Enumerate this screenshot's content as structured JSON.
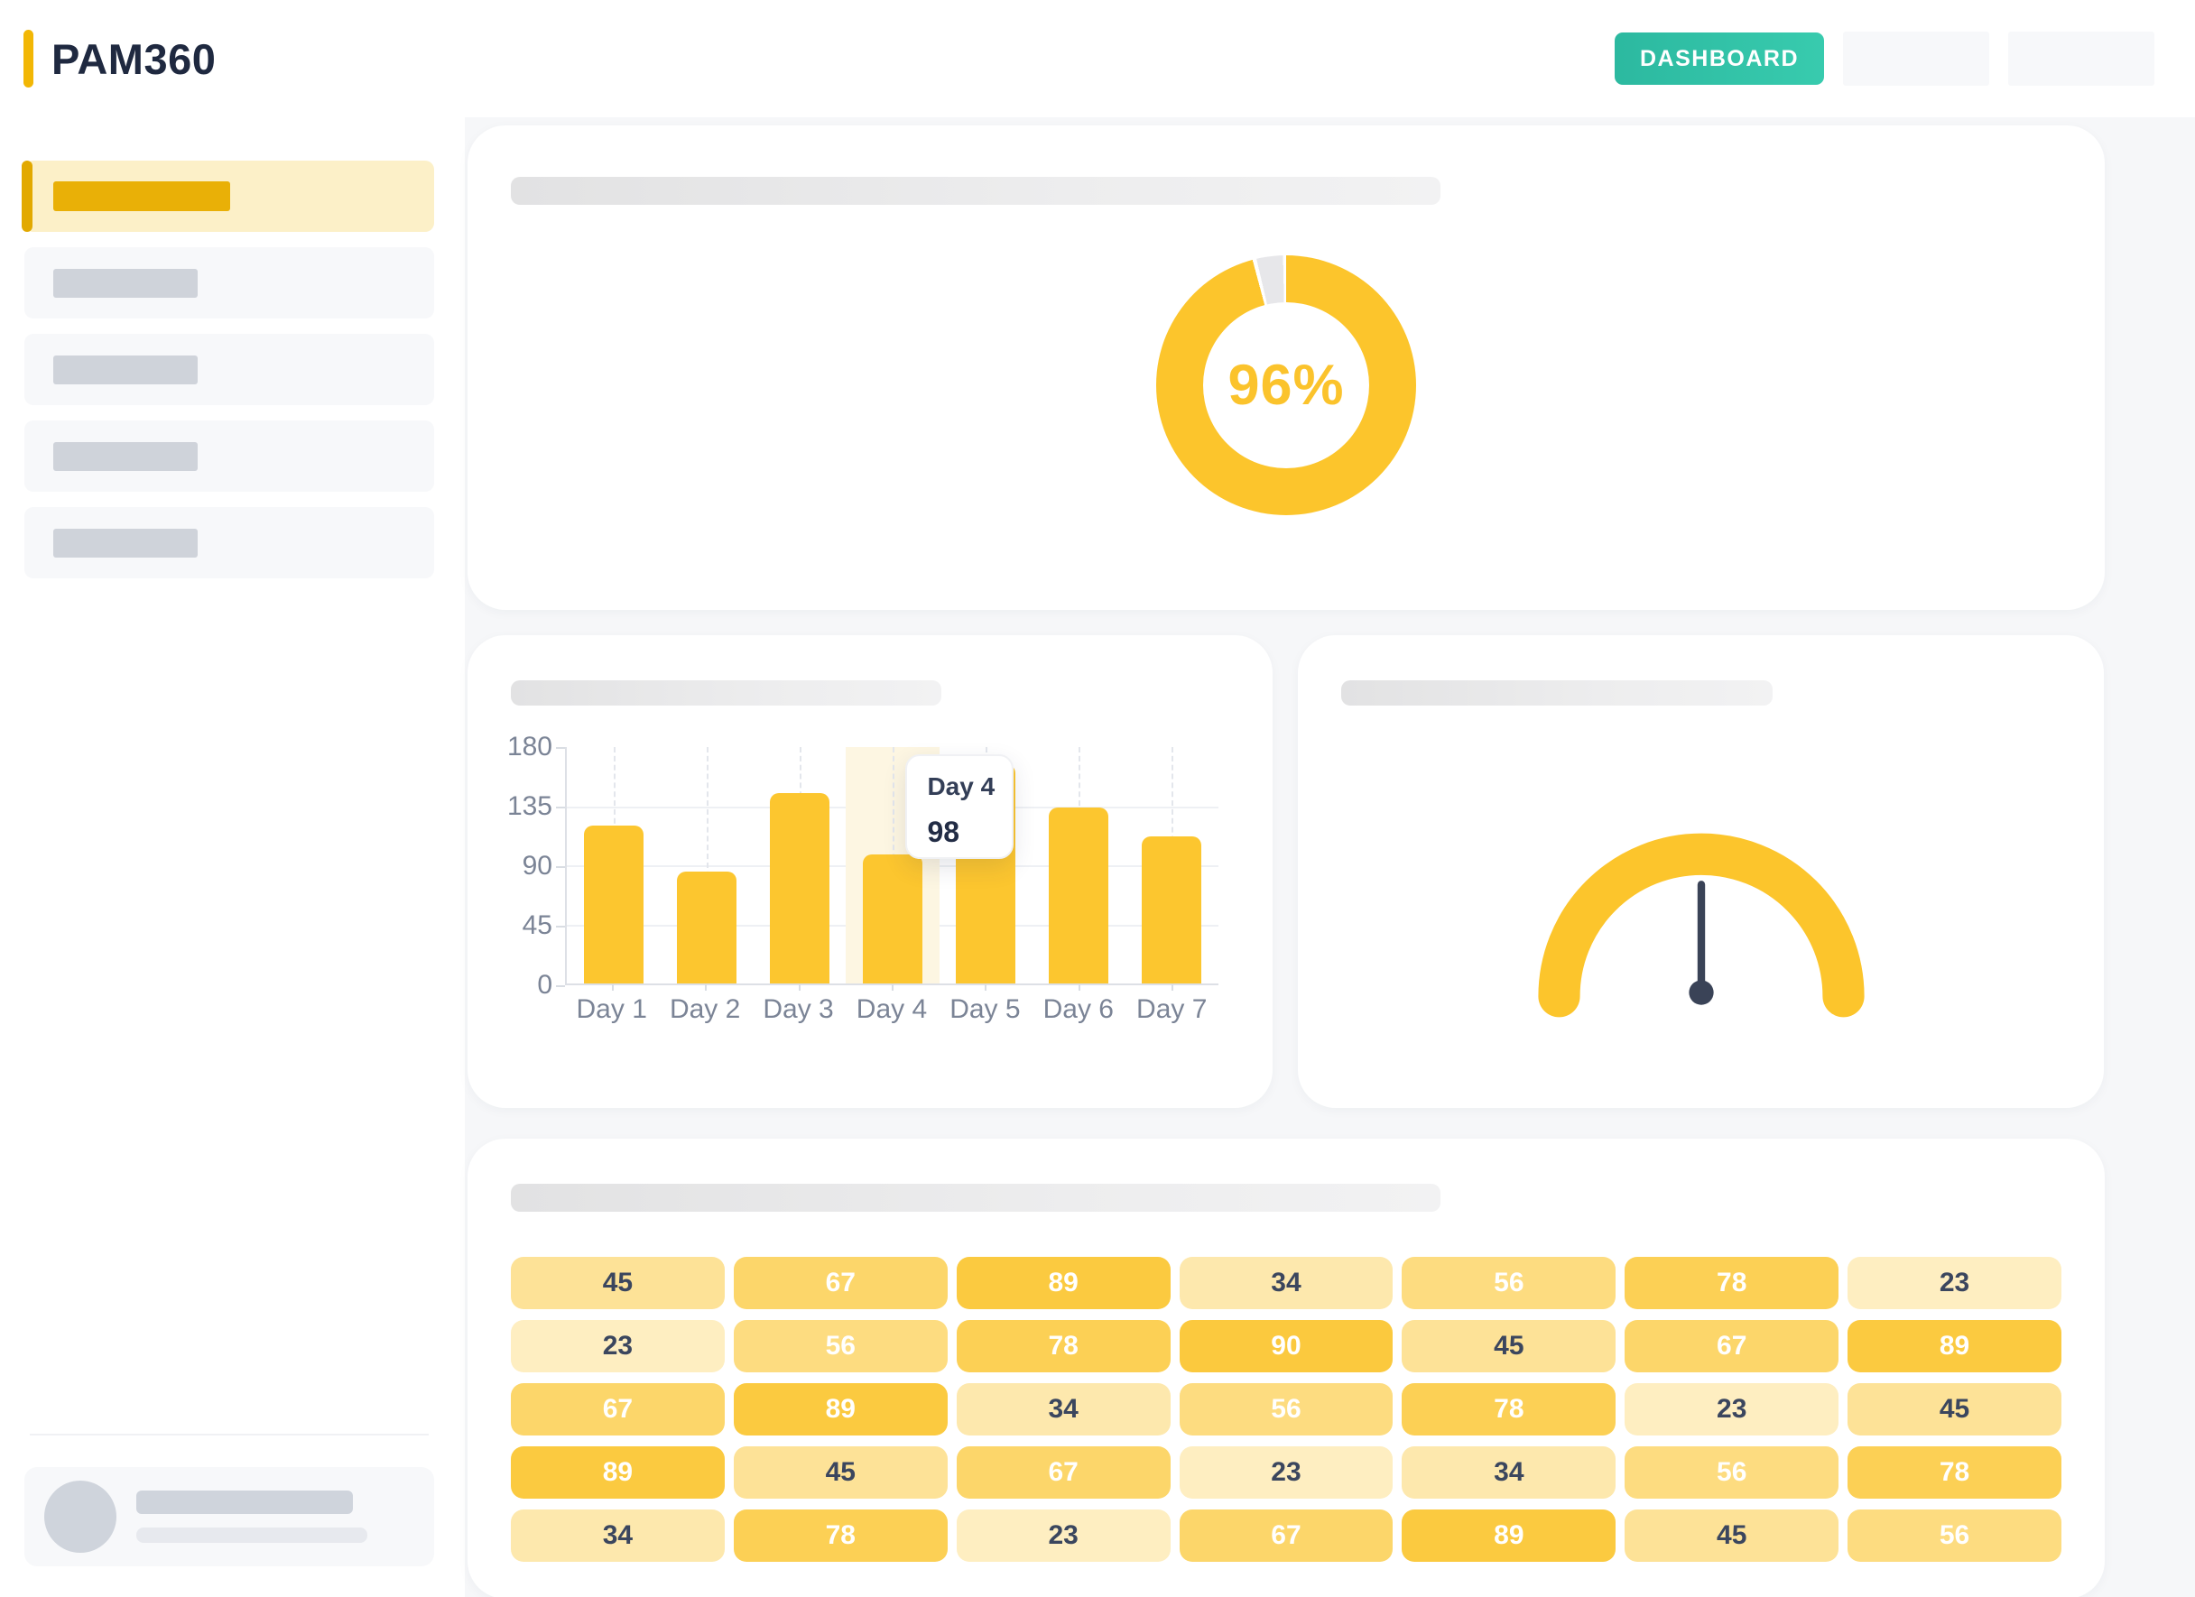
{
  "app": {
    "name": "PAM360"
  },
  "header": {
    "dashboard_label": "DASHBOARD",
    "ghost_button_count": 2,
    "accent_color": "#F2B705",
    "teal_color": "#2FC0A6"
  },
  "sidebar": {
    "nav_item_count": 5,
    "active_index": 0,
    "user_panel": {
      "has_avatar": true,
      "skeleton_line_count": 2
    }
  },
  "chart_data": {
    "donut": {
      "type": "pie",
      "label": "96%",
      "value": 96,
      "max": 100,
      "color": "#FCC52C",
      "rest_color": "#E7E7EA"
    },
    "bar": {
      "type": "bar",
      "categories": [
        "Day 1",
        "Day 2",
        "Day 3",
        "Day 4",
        "Day 5",
        "Day 6",
        "Day 7"
      ],
      "values": [
        120,
        85,
        145,
        98,
        167,
        134,
        112
      ],
      "yticks": [
        0,
        45,
        90,
        135,
        180
      ],
      "ylim": [
        0,
        180
      ],
      "bar_color": "#FCC62F",
      "highlight_index": 3,
      "tooltip": {
        "title": "Day 4",
        "value": "98"
      }
    },
    "gauge": {
      "type": "gauge",
      "needle_fraction": 0.5,
      "arc_color": "#FCC52C",
      "needle_color": "#3A4357"
    },
    "heatmap": {
      "type": "heatmap",
      "rows": 5,
      "cols": 7,
      "values": [
        [
          45,
          67,
          89,
          34,
          56,
          78,
          23
        ],
        [
          23,
          56,
          78,
          90,
          45,
          67,
          89
        ],
        [
          67,
          89,
          34,
          56,
          78,
          23,
          45
        ],
        [
          89,
          45,
          67,
          23,
          34,
          56,
          78
        ],
        [
          34,
          78,
          23,
          67,
          89,
          45,
          56
        ]
      ],
      "base_rgb": "251,196,43",
      "white_text_threshold": 50,
      "dark_text_color": "#3B465E"
    }
  }
}
